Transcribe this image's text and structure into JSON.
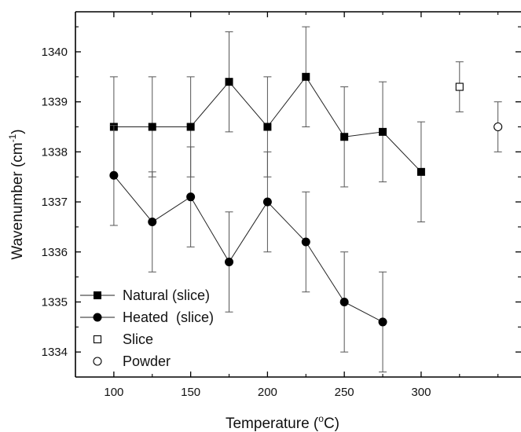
{
  "chart_data": {
    "type": "scatter",
    "xlabel": {
      "main": "Temperature (",
      "sup": "o",
      "unit": "C)"
    },
    "ylabel": {
      "main": "Wavenumber (cm",
      "sup": "-1",
      "end": ")"
    },
    "xlim": [
      75,
      365
    ],
    "ylim": [
      1333.5,
      1340.8
    ],
    "xticks": [
      100,
      150,
      200,
      250,
      300
    ],
    "xticks_minor": [
      125,
      175,
      225,
      275,
      325,
      350
    ],
    "yticks": [
      1334,
      1335,
      1336,
      1337,
      1338,
      1339,
      1340
    ],
    "yticks_minor": [
      1333.5,
      1334.5,
      1335.5,
      1336.5,
      1337.5,
      1338.5,
      1339.5,
      1340.5
    ],
    "legend_position": "bottom-left",
    "series": [
      {
        "name": "Natural (slice)",
        "marker": "square-filled",
        "line": true,
        "x": [
          100,
          125,
          150,
          175,
          200,
          225,
          250,
          275,
          300
        ],
        "y": [
          1338.5,
          1338.5,
          1338.5,
          1339.4,
          1338.5,
          1339.5,
          1338.3,
          1338.4,
          1337.6
        ],
        "error": [
          1.0,
          1.0,
          1.0,
          1.0,
          1.0,
          1.0,
          1.0,
          1.0,
          1.0
        ]
      },
      {
        "name": "Heated  (slice)",
        "marker": "circle-filled",
        "line": true,
        "x": [
          100,
          125,
          150,
          175,
          200,
          225,
          250,
          275
        ],
        "y": [
          1337.53,
          1336.6,
          1337.1,
          1335.8,
          1337.0,
          1336.2,
          1335.0,
          1334.6
        ],
        "error": [
          1.0,
          1.0,
          1.0,
          1.0,
          1.0,
          1.0,
          1.0,
          1.0
        ]
      },
      {
        "name": "Slice",
        "marker": "square-open",
        "line": false,
        "x": [
          325
        ],
        "y": [
          1339.3
        ],
        "error": [
          0.5
        ]
      },
      {
        "name": "Powder",
        "marker": "circle-open",
        "line": false,
        "x": [
          350
        ],
        "y": [
          1338.5
        ],
        "error": [
          0.5
        ]
      }
    ]
  }
}
